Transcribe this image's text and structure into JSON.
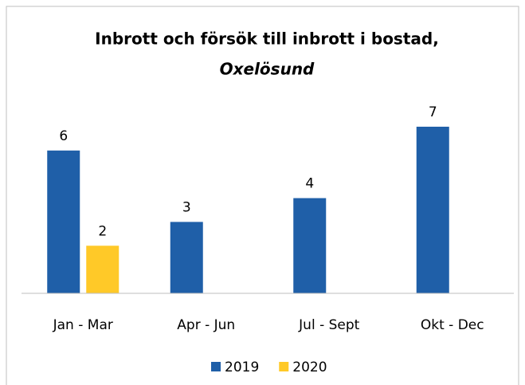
{
  "chart_data": {
    "type": "bar",
    "title": "Inbrott och försök till inbrott i bostad,",
    "subtitle": "Oxelösund",
    "categories": [
      "Jan - Mar",
      "Apr - Jun",
      "Jul - Sept",
      "Okt - Dec"
    ],
    "series": [
      {
        "name": "2019",
        "color": "#1f5fa8",
        "values": [
          6,
          3,
          4,
          7
        ]
      },
      {
        "name": "2020",
        "color": "#ffc928",
        "values": [
          2,
          null,
          null,
          null
        ]
      }
    ],
    "ylim": [
      0,
      7.3
    ],
    "legend": "bottom"
  }
}
